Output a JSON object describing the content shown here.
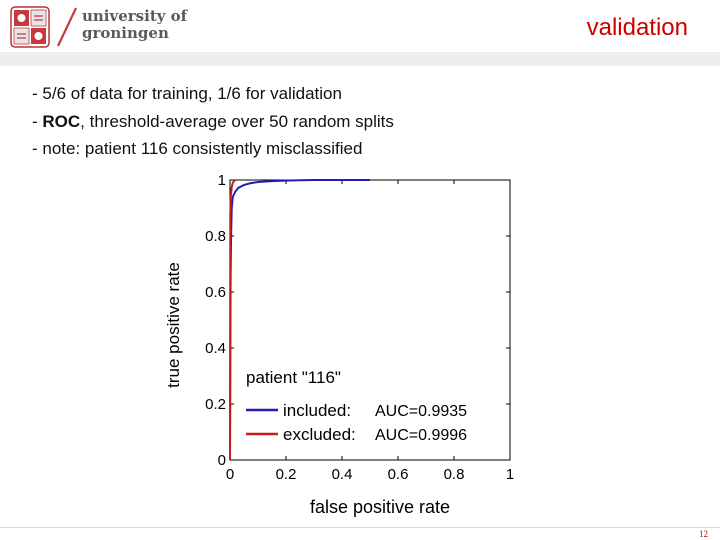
{
  "header": {
    "logo_line1": "university of",
    "logo_line2": "groningen",
    "title": "validation",
    "accent_color": "#cc0000"
  },
  "bullets": [
    {
      "prefix": "- ",
      "bold": "",
      "text": "5/6 of data for training, 1/6 for validation"
    },
    {
      "prefix": "- ",
      "bold": "ROC",
      "text": ", threshold-average over 50 random splits"
    },
    {
      "prefix": "- ",
      "bold": "",
      "text": "note: patient 116 consistently misclassified"
    }
  ],
  "chart_data": {
    "type": "line",
    "xlabel": "false positive rate",
    "ylabel": "true positive rate",
    "xlim": [
      0,
      1
    ],
    "ylim": [
      0,
      1
    ],
    "xticks": [
      "0",
      "0.2",
      "0.4",
      "0.6",
      "0.8",
      "1"
    ],
    "yticks": [
      "0",
      "0.2",
      "0.4",
      "0.6",
      "0.8",
      "1"
    ],
    "grid": false,
    "legend": {
      "title": "patient \"116\"",
      "placement": "bottom-left",
      "entries": [
        {
          "label": "included:",
          "auc": "AUC=0.9935"
        },
        {
          "label": "excluded:",
          "auc": "AUC=0.9996"
        }
      ]
    },
    "series": [
      {
        "name": "included:",
        "color": "#1f1fb0",
        "x": [
          0,
          0.002,
          0.004,
          0.006,
          0.01,
          0.02,
          0.03,
          0.05,
          0.07,
          0.1,
          0.15,
          0.2,
          0.25,
          0.3,
          0.4,
          0.5
        ],
        "y": [
          0,
          0.66,
          0.8,
          0.9,
          0.94,
          0.96,
          0.972,
          0.982,
          0.988,
          0.993,
          0.996,
          0.998,
          0.999,
          1,
          1,
          1
        ]
      },
      {
        "name": "excluded:",
        "color": "#cc1a1a",
        "x": [
          0,
          0.001,
          0.003,
          0.006,
          0.01,
          0.015,
          0.02
        ],
        "y": [
          0,
          0.88,
          0.94,
          0.975,
          0.99,
          0.997,
          1
        ]
      }
    ]
  },
  "footer": {
    "page": "12"
  }
}
